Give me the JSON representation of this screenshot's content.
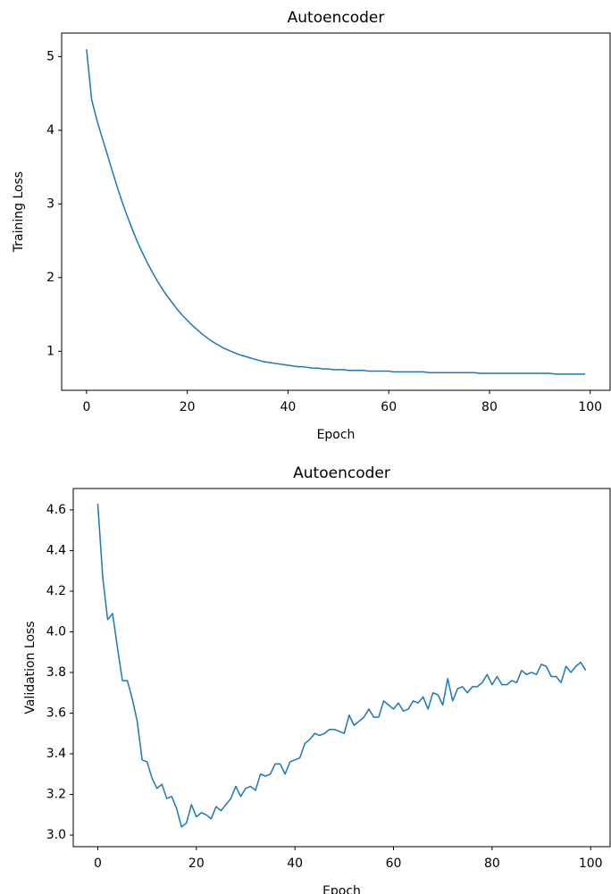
{
  "chart_data": [
    {
      "type": "line",
      "title": "Autoencoder",
      "x_label": "Epoch",
      "y_label": "Training Loss",
      "x": [
        0,
        1,
        2,
        3,
        4,
        5,
        6,
        7,
        8,
        9,
        10,
        11,
        12,
        13,
        14,
        15,
        16,
        17,
        18,
        19,
        20,
        21,
        22,
        23,
        24,
        25,
        26,
        27,
        28,
        29,
        30,
        31,
        32,
        33,
        34,
        35,
        36,
        37,
        38,
        39,
        40,
        41,
        42,
        43,
        44,
        45,
        46,
        47,
        48,
        49,
        50,
        51,
        52,
        53,
        54,
        55,
        56,
        57,
        58,
        59,
        60,
        61,
        62,
        63,
        64,
        65,
        66,
        67,
        68,
        69,
        70,
        71,
        72,
        73,
        74,
        75,
        76,
        77,
        78,
        79,
        80,
        81,
        82,
        83,
        84,
        85,
        86,
        87,
        88,
        89,
        90,
        91,
        92,
        93,
        94,
        95,
        96,
        97,
        98,
        99
      ],
      "series": [
        {
          "color": "#1f77b4",
          "values": [
            5.1,
            4.42,
            4.15,
            3.92,
            3.7,
            3.47,
            3.25,
            3.04,
            2.85,
            2.67,
            2.5,
            2.35,
            2.21,
            2.08,
            1.96,
            1.85,
            1.75,
            1.66,
            1.57,
            1.49,
            1.42,
            1.35,
            1.29,
            1.23,
            1.18,
            1.13,
            1.09,
            1.05,
            1.02,
            0.99,
            0.96,
            0.94,
            0.92,
            0.9,
            0.88,
            0.86,
            0.85,
            0.84,
            0.83,
            0.82,
            0.81,
            0.8,
            0.79,
            0.79,
            0.78,
            0.77,
            0.77,
            0.76,
            0.76,
            0.75,
            0.75,
            0.75,
            0.74,
            0.74,
            0.74,
            0.74,
            0.73,
            0.73,
            0.73,
            0.73,
            0.73,
            0.72,
            0.72,
            0.72,
            0.72,
            0.72,
            0.72,
            0.72,
            0.71,
            0.71,
            0.71,
            0.71,
            0.71,
            0.71,
            0.71,
            0.71,
            0.71,
            0.71,
            0.7,
            0.7,
            0.7,
            0.7,
            0.7,
            0.7,
            0.7,
            0.7,
            0.7,
            0.7,
            0.7,
            0.7,
            0.7,
            0.7,
            0.7,
            0.69,
            0.69,
            0.69,
            0.69,
            0.69,
            0.69,
            0.69
          ]
        }
      ],
      "xlim": [
        -4.95,
        103.95
      ],
      "xticks": [
        0,
        20,
        40,
        60,
        80,
        100
      ],
      "ylim": [
        0.47,
        5.32
      ],
      "yticks": [
        1,
        2,
        3,
        4,
        5
      ]
    },
    {
      "type": "line",
      "title": "Autoencoder",
      "x_label": "Epoch",
      "y_label": "Validation Loss",
      "x": [
        0,
        1,
        2,
        3,
        4,
        5,
        6,
        7,
        8,
        9,
        10,
        11,
        12,
        13,
        14,
        15,
        16,
        17,
        18,
        19,
        20,
        21,
        22,
        23,
        24,
        25,
        26,
        27,
        28,
        29,
        30,
        31,
        32,
        33,
        34,
        35,
        36,
        37,
        38,
        39,
        40,
        41,
        42,
        43,
        44,
        45,
        46,
        47,
        48,
        49,
        50,
        51,
        52,
        53,
        54,
        55,
        56,
        57,
        58,
        59,
        60,
        61,
        62,
        63,
        64,
        65,
        66,
        67,
        68,
        69,
        70,
        71,
        72,
        73,
        74,
        75,
        76,
        77,
        78,
        79,
        80,
        81,
        82,
        83,
        84,
        85,
        86,
        87,
        88,
        89,
        90,
        91,
        92,
        93,
        94,
        95,
        96,
        97,
        98,
        99
      ],
      "series": [
        {
          "color": "#1f77b4",
          "values": [
            4.63,
            4.27,
            4.06,
            4.09,
            3.92,
            3.76,
            3.76,
            3.67,
            3.56,
            3.37,
            3.36,
            3.28,
            3.23,
            3.25,
            3.18,
            3.19,
            3.13,
            3.04,
            3.06,
            3.15,
            3.09,
            3.11,
            3.1,
            3.08,
            3.14,
            3.12,
            3.15,
            3.18,
            3.24,
            3.19,
            3.23,
            3.24,
            3.22,
            3.3,
            3.29,
            3.3,
            3.35,
            3.35,
            3.3,
            3.36,
            3.37,
            3.38,
            3.45,
            3.47,
            3.5,
            3.49,
            3.5,
            3.52,
            3.52,
            3.51,
            3.5,
            3.59,
            3.54,
            3.56,
            3.58,
            3.62,
            3.58,
            3.58,
            3.66,
            3.64,
            3.62,
            3.65,
            3.61,
            3.62,
            3.66,
            3.65,
            3.68,
            3.62,
            3.7,
            3.69,
            3.64,
            3.77,
            3.66,
            3.72,
            3.73,
            3.7,
            3.73,
            3.73,
            3.75,
            3.79,
            3.74,
            3.78,
            3.74,
            3.74,
            3.76,
            3.75,
            3.81,
            3.79,
            3.8,
            3.79,
            3.84,
            3.83,
            3.78,
            3.78,
            3.75,
            3.83,
            3.8,
            3.83,
            3.85,
            3.81
          ]
        }
      ],
      "xlim": [
        -4.98,
        103.95
      ],
      "xticks": [
        0,
        20,
        40,
        60,
        80,
        100
      ],
      "ylim": [
        2.943,
        4.705
      ],
      "yticks": [
        {
          "value": 3.0,
          "label": "3.0"
        },
        3.2,
        3.4,
        3.6,
        3.8,
        {
          "value": 4.0,
          "label": "4.0"
        },
        4.2,
        4.4,
        4.6
      ]
    }
  ]
}
